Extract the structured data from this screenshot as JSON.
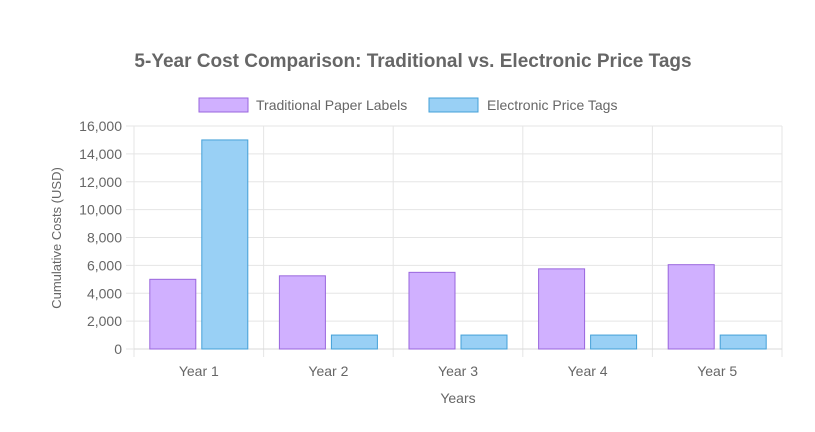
{
  "chart_data": {
    "type": "bar",
    "title": "5-Year Cost Comparison: Traditional vs. Electronic Price Tags",
    "xlabel": "Years",
    "ylabel": "Cumulative Costs (USD)",
    "categories": [
      "Year 1",
      "Year 2",
      "Year 3",
      "Year 4",
      "Year 5"
    ],
    "ylim": [
      0,
      16000
    ],
    "yticks": [
      "0",
      "2,000",
      "4,000",
      "6,000",
      "8,000",
      "10,000",
      "12,000",
      "14,000",
      "16,000"
    ],
    "grid": true,
    "legend_position": "top",
    "series": [
      {
        "name": "Traditional Paper Labels",
        "values": [
          5000,
          5250,
          5500,
          5750,
          6050
        ],
        "fill": "#d0b0ff",
        "stroke": "#9966dd"
      },
      {
        "name": "Electronic Price Tags",
        "values": [
          15000,
          1000,
          1000,
          1000,
          1000
        ],
        "fill": "#99d0f5",
        "stroke": "#44a0d8"
      }
    ]
  }
}
